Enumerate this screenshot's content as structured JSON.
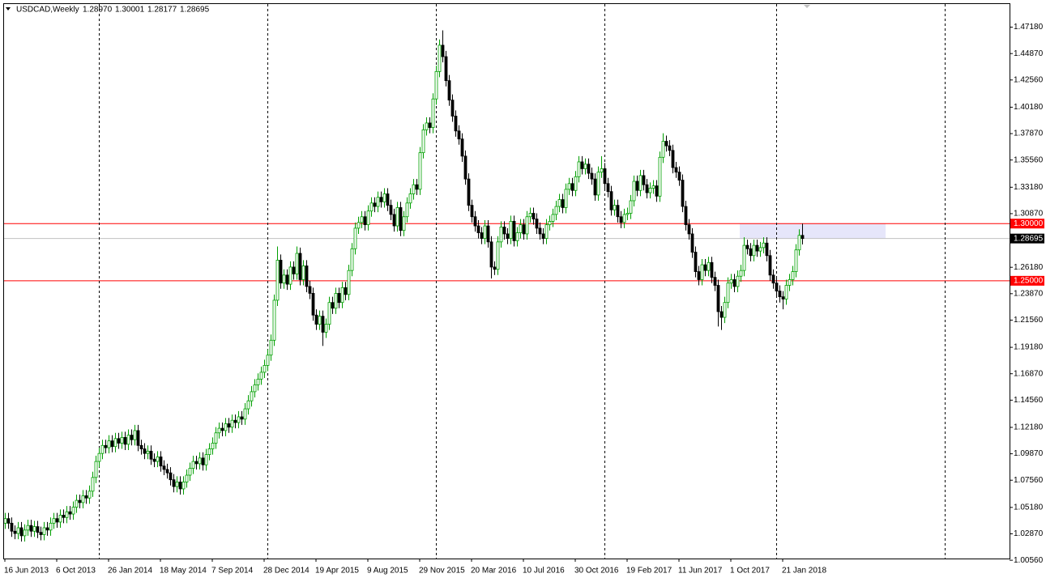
{
  "chart_data": {
    "type": "candlestick",
    "header": {
      "symbol": "USDCAD,Weekly",
      "ohlc": [
        "1.28970",
        "1.30001",
        "1.28177",
        "1.28695"
      ]
    },
    "categories": [
      "16 Jun 2013",
      null,
      null,
      null,
      null,
      null,
      null,
      null,
      null,
      null,
      null,
      null,
      null,
      null,
      null,
      null,
      "6 Oct 2013",
      null,
      null,
      null,
      null,
      null,
      null,
      null,
      null,
      null,
      null,
      null,
      null,
      null,
      null,
      null,
      "26 Jan 2014",
      null,
      null,
      null,
      null,
      null,
      null,
      null,
      null,
      null,
      null,
      null,
      null,
      null,
      null,
      null,
      "18 May 2014",
      null,
      null,
      null,
      null,
      null,
      null,
      null,
      null,
      null,
      null,
      null,
      null,
      null,
      null,
      null,
      "7 Sep 2014",
      null,
      null,
      null,
      null,
      null,
      null,
      null,
      null,
      null,
      null,
      null,
      null,
      null,
      null,
      null,
      "28 Dec 2014",
      null,
      null,
      null,
      null,
      null,
      null,
      null,
      null,
      null,
      null,
      null,
      null,
      null,
      null,
      null,
      "19 Apr 2015",
      null,
      null,
      null,
      null,
      null,
      null,
      null,
      null,
      null,
      null,
      null,
      null,
      null,
      null,
      null,
      "9 Aug 2015",
      null,
      null,
      null,
      null,
      null,
      null,
      null,
      null,
      null,
      null,
      null,
      null,
      null,
      null,
      null,
      "29 Nov 2015",
      null,
      null,
      null,
      null,
      null,
      null,
      null,
      null,
      null,
      null,
      null,
      null,
      null,
      null,
      null,
      "20 Mar 2016",
      null,
      null,
      null,
      null,
      null,
      null,
      null,
      null,
      null,
      null,
      null,
      null,
      null,
      null,
      null,
      "10 Jul 2016",
      null,
      null,
      null,
      null,
      null,
      null,
      null,
      null,
      null,
      null,
      null,
      null,
      null,
      null,
      null,
      "30 Oct 2016",
      null,
      null,
      null,
      null,
      null,
      null,
      null,
      null,
      null,
      null,
      null,
      null,
      null,
      null,
      null,
      "19 Feb 2017",
      null,
      null,
      null,
      null,
      null,
      null,
      null,
      null,
      null,
      null,
      null,
      null,
      null,
      null,
      null,
      "11 Jun 2017",
      null,
      null,
      null,
      null,
      null,
      null,
      null,
      null,
      null,
      null,
      null,
      null,
      null,
      null,
      null,
      "1 Oct 2017",
      null,
      null,
      null,
      null,
      null,
      null,
      null,
      null,
      null,
      null,
      null,
      null,
      null,
      null,
      null,
      "21 Jan 2018",
      null,
      null,
      null,
      null,
      null,
      null
    ],
    "open": [
      1.038,
      1.042,
      1.038,
      1.031,
      1.029,
      1.034,
      1.027,
      1.032,
      1.036,
      1.031,
      1.035,
      1.03,
      1.028,
      1.034,
      1.032,
      1.038,
      1.042,
      1.039,
      1.045,
      1.043,
      1.048,
      1.046,
      1.052,
      1.058,
      1.056,
      1.062,
      1.06,
      1.066,
      1.078,
      1.092,
      1.099,
      1.106,
      1.104,
      1.11,
      1.105,
      1.112,
      1.108,
      1.113,
      1.107,
      1.115,
      1.111,
      1.119,
      1.106,
      1.103,
      1.099,
      1.101,
      1.094,
      1.092,
      1.096,
      1.088,
      1.085,
      1.082,
      1.076,
      1.07,
      1.074,
      1.068,
      1.074,
      1.08,
      1.086,
      1.092,
      1.09,
      1.095,
      1.089,
      1.098,
      1.103,
      1.108,
      1.117,
      1.121,
      1.119,
      1.125,
      1.122,
      1.128,
      1.126,
      1.131,
      1.129,
      1.138,
      1.145,
      1.153,
      1.159,
      1.164,
      1.17,
      1.176,
      1.185,
      1.198,
      1.233,
      1.268,
      1.248,
      1.255,
      1.247,
      1.262,
      1.256,
      1.274,
      1.251,
      1.263,
      1.245,
      1.239,
      1.22,
      1.212,
      1.219,
      1.205,
      1.212,
      1.231,
      1.226,
      1.239,
      1.231,
      1.244,
      1.238,
      1.259,
      1.278,
      1.296,
      1.301,
      1.306,
      1.299,
      1.311,
      1.318,
      1.315,
      1.323,
      1.319,
      1.326,
      1.316,
      1.308,
      1.298,
      1.314,
      1.294,
      1.306,
      1.318,
      1.326,
      1.334,
      1.33,
      1.362,
      1.382,
      1.388,
      1.384,
      1.409,
      1.433,
      1.456,
      1.446,
      1.425,
      1.408,
      1.394,
      1.381,
      1.374,
      1.359,
      1.339,
      1.316,
      1.306,
      1.298,
      1.292,
      1.287,
      1.298,
      1.284,
      1.262,
      1.26,
      1.284,
      1.297,
      1.291,
      1.287,
      1.302,
      1.285,
      1.292,
      1.299,
      1.291,
      1.306,
      1.309,
      1.304,
      1.296,
      1.291,
      1.287,
      1.299,
      1.302,
      1.308,
      1.315,
      1.321,
      1.314,
      1.33,
      1.335,
      1.329,
      1.341,
      1.354,
      1.348,
      1.352,
      1.344,
      1.339,
      1.325,
      1.345,
      1.348,
      1.335,
      1.328,
      1.312,
      1.316,
      1.306,
      1.301,
      1.308,
      1.309,
      1.32,
      1.337,
      1.329,
      1.342,
      1.334,
      1.327,
      1.331,
      1.333,
      1.324,
      1.358,
      1.372,
      1.368,
      1.364,
      1.349,
      1.345,
      1.338,
      1.315,
      1.299,
      1.291,
      1.275,
      1.258,
      1.251,
      1.264,
      1.259,
      1.266,
      1.253,
      1.246,
      1.223,
      1.218,
      1.231,
      1.248,
      1.251,
      1.245,
      1.254,
      1.259,
      1.281,
      1.278,
      1.272,
      1.281,
      1.276,
      1.279,
      1.283,
      1.272,
      1.255,
      1.248,
      1.241,
      1.236,
      1.234,
      1.246,
      1.251,
      1.258,
      1.277,
      1.2897
    ],
    "high": [
      1.047,
      1.047,
      1.043,
      1.036,
      1.039,
      1.039,
      1.037,
      1.041,
      1.041,
      1.04,
      1.04,
      1.035,
      1.039,
      1.039,
      1.043,
      1.047,
      1.047,
      1.05,
      1.05,
      1.053,
      1.053,
      1.057,
      1.063,
      1.063,
      1.067,
      1.067,
      1.071,
      1.083,
      1.097,
      1.104,
      1.111,
      1.111,
      1.115,
      1.115,
      1.117,
      1.117,
      1.118,
      1.118,
      1.12,
      1.12,
      1.124,
      1.124,
      1.111,
      1.108,
      1.106,
      1.106,
      1.099,
      1.101,
      1.101,
      1.093,
      1.09,
      1.087,
      1.081,
      1.079,
      1.079,
      1.079,
      1.085,
      1.091,
      1.097,
      1.097,
      1.1,
      1.1,
      1.103,
      1.108,
      1.113,
      1.122,
      1.126,
      1.126,
      1.13,
      1.13,
      1.133,
      1.133,
      1.136,
      1.136,
      1.143,
      1.15,
      1.158,
      1.164,
      1.169,
      1.175,
      1.181,
      1.19,
      1.203,
      1.238,
      1.28,
      1.273,
      1.26,
      1.26,
      1.267,
      1.267,
      1.28,
      1.279,
      1.268,
      1.268,
      1.25,
      1.244,
      1.225,
      1.224,
      1.224,
      1.217,
      1.236,
      1.236,
      1.244,
      1.244,
      1.249,
      1.249,
      1.264,
      1.283,
      1.301,
      1.306,
      1.311,
      1.311,
      1.316,
      1.323,
      1.323,
      1.328,
      1.328,
      1.331,
      1.331,
      1.321,
      1.313,
      1.319,
      1.319,
      1.311,
      1.323,
      1.331,
      1.339,
      1.339,
      1.367,
      1.387,
      1.393,
      1.393,
      1.414,
      1.438,
      1.461,
      1.469,
      1.451,
      1.43,
      1.413,
      1.399,
      1.386,
      1.379,
      1.364,
      1.344,
      1.321,
      1.311,
      1.303,
      1.297,
      1.303,
      1.303,
      1.289,
      1.267,
      1.289,
      1.302,
      1.302,
      1.296,
      1.307,
      1.307,
      1.297,
      1.304,
      1.304,
      1.311,
      1.314,
      1.314,
      1.309,
      1.301,
      1.296,
      1.304,
      1.307,
      1.313,
      1.32,
      1.326,
      1.326,
      1.335,
      1.34,
      1.34,
      1.346,
      1.359,
      1.359,
      1.357,
      1.357,
      1.349,
      1.344,
      1.35,
      1.359,
      1.353,
      1.34,
      1.333,
      1.321,
      1.321,
      1.311,
      1.313,
      1.314,
      1.325,
      1.342,
      1.342,
      1.347,
      1.347,
      1.339,
      1.336,
      1.338,
      1.338,
      1.363,
      1.379,
      1.377,
      1.373,
      1.369,
      1.354,
      1.35,
      1.343,
      1.32,
      1.304,
      1.296,
      1.28,
      1.263,
      1.269,
      1.269,
      1.271,
      1.271,
      1.258,
      1.251,
      1.228,
      1.236,
      1.253,
      1.256,
      1.256,
      1.259,
      1.264,
      1.288,
      1.286,
      1.283,
      1.286,
      1.286,
      1.284,
      1.288,
      1.288,
      1.277,
      1.26,
      1.253,
      1.246,
      1.241,
      1.251,
      1.256,
      1.263,
      1.282,
      1.295,
      1.30001
    ],
    "low": [
      1.033,
      1.033,
      1.026,
      1.024,
      1.024,
      1.022,
      1.022,
      1.027,
      1.026,
      1.026,
      1.025,
      1.023,
      1.023,
      1.027,
      1.027,
      1.033,
      1.034,
      1.034,
      1.038,
      1.038,
      1.041,
      1.041,
      1.047,
      1.051,
      1.051,
      1.055,
      1.055,
      1.061,
      1.073,
      1.087,
      1.094,
      1.099,
      1.099,
      1.1,
      1.1,
      1.103,
      1.103,
      1.102,
      1.102,
      1.106,
      1.106,
      1.101,
      1.098,
      1.094,
      1.094,
      1.089,
      1.087,
      1.087,
      1.083,
      1.08,
      1.077,
      1.071,
      1.065,
      1.065,
      1.063,
      1.063,
      1.069,
      1.075,
      1.081,
      1.085,
      1.085,
      1.084,
      1.084,
      1.093,
      1.098,
      1.103,
      1.112,
      1.114,
      1.114,
      1.117,
      1.117,
      1.121,
      1.121,
      1.124,
      1.124,
      1.133,
      1.14,
      1.148,
      1.154,
      1.159,
      1.165,
      1.171,
      1.18,
      1.193,
      1.228,
      1.243,
      1.243,
      1.242,
      1.242,
      1.251,
      1.251,
      1.246,
      1.246,
      1.24,
      1.234,
      1.215,
      1.207,
      1.207,
      1.193,
      1.2,
      1.207,
      1.221,
      1.221,
      1.226,
      1.226,
      1.233,
      1.233,
      1.254,
      1.273,
      1.291,
      1.296,
      1.294,
      1.294,
      1.306,
      1.31,
      1.31,
      1.314,
      1.314,
      1.311,
      1.303,
      1.293,
      1.293,
      1.289,
      1.289,
      1.301,
      1.313,
      1.321,
      1.325,
      1.325,
      1.357,
      1.377,
      1.379,
      1.379,
      1.404,
      1.428,
      1.441,
      1.42,
      1.403,
      1.389,
      1.376,
      1.369,
      1.354,
      1.334,
      1.311,
      1.301,
      1.293,
      1.287,
      1.282,
      1.282,
      1.279,
      1.252,
      1.255,
      1.255,
      1.279,
      1.286,
      1.282,
      1.282,
      1.28,
      1.28,
      1.287,
      1.286,
      1.286,
      1.301,
      1.299,
      1.291,
      1.286,
      1.282,
      1.282,
      1.294,
      1.297,
      1.303,
      1.31,
      1.309,
      1.309,
      1.325,
      1.324,
      1.324,
      1.336,
      1.343,
      1.343,
      1.339,
      1.334,
      1.32,
      1.32,
      1.34,
      1.33,
      1.323,
      1.307,
      1.307,
      1.301,
      1.296,
      1.296,
      1.303,
      1.304,
      1.315,
      1.324,
      1.324,
      1.329,
      1.322,
      1.322,
      1.326,
      1.319,
      1.319,
      1.353,
      1.363,
      1.359,
      1.344,
      1.34,
      1.333,
      1.31,
      1.294,
      1.286,
      1.27,
      1.253,
      1.246,
      1.246,
      1.254,
      1.254,
      1.248,
      1.241,
      1.21,
      1.207,
      1.213,
      1.226,
      1.243,
      1.24,
      1.24,
      1.249,
      1.254,
      1.273,
      1.267,
      1.267,
      1.271,
      1.271,
      1.274,
      1.267,
      1.25,
      1.243,
      1.236,
      1.231,
      1.225,
      1.229,
      1.241,
      1.246,
      1.253,
      1.272,
      1.28177
    ],
    "close": [
      1.042,
      1.038,
      1.031,
      1.029,
      1.034,
      1.027,
      1.032,
      1.036,
      1.031,
      1.035,
      1.03,
      1.028,
      1.034,
      1.032,
      1.038,
      1.042,
      1.039,
      1.045,
      1.043,
      1.048,
      1.046,
      1.052,
      1.058,
      1.056,
      1.062,
      1.06,
      1.066,
      1.078,
      1.092,
      1.099,
      1.106,
      1.104,
      1.11,
      1.105,
      1.112,
      1.108,
      1.113,
      1.107,
      1.115,
      1.111,
      1.119,
      1.106,
      1.103,
      1.099,
      1.101,
      1.094,
      1.092,
      1.096,
      1.088,
      1.085,
      1.082,
      1.076,
      1.07,
      1.074,
      1.068,
      1.074,
      1.08,
      1.086,
      1.092,
      1.09,
      1.095,
      1.089,
      1.098,
      1.103,
      1.108,
      1.117,
      1.121,
      1.119,
      1.125,
      1.122,
      1.128,
      1.126,
      1.131,
      1.129,
      1.138,
      1.145,
      1.153,
      1.159,
      1.164,
      1.17,
      1.176,
      1.185,
      1.198,
      1.233,
      1.268,
      1.248,
      1.255,
      1.247,
      1.262,
      1.256,
      1.274,
      1.251,
      1.263,
      1.245,
      1.239,
      1.22,
      1.212,
      1.219,
      1.205,
      1.212,
      1.231,
      1.226,
      1.239,
      1.231,
      1.244,
      1.238,
      1.259,
      1.278,
      1.296,
      1.301,
      1.306,
      1.299,
      1.311,
      1.318,
      1.315,
      1.323,
      1.319,
      1.326,
      1.316,
      1.308,
      1.298,
      1.314,
      1.294,
      1.306,
      1.318,
      1.326,
      1.334,
      1.33,
      1.362,
      1.382,
      1.388,
      1.384,
      1.409,
      1.433,
      1.456,
      1.446,
      1.425,
      1.408,
      1.394,
      1.381,
      1.374,
      1.359,
      1.339,
      1.316,
      1.306,
      1.298,
      1.292,
      1.287,
      1.298,
      1.284,
      1.262,
      1.26,
      1.284,
      1.297,
      1.291,
      1.287,
      1.302,
      1.285,
      1.292,
      1.299,
      1.291,
      1.306,
      1.309,
      1.304,
      1.296,
      1.291,
      1.287,
      1.299,
      1.302,
      1.308,
      1.315,
      1.321,
      1.314,
      1.33,
      1.335,
      1.329,
      1.341,
      1.354,
      1.348,
      1.352,
      1.344,
      1.339,
      1.325,
      1.345,
      1.348,
      1.335,
      1.328,
      1.312,
      1.316,
      1.306,
      1.301,
      1.308,
      1.309,
      1.32,
      1.337,
      1.329,
      1.342,
      1.334,
      1.327,
      1.331,
      1.333,
      1.324,
      1.358,
      1.372,
      1.368,
      1.364,
      1.349,
      1.345,
      1.338,
      1.315,
      1.299,
      1.291,
      1.275,
      1.258,
      1.251,
      1.264,
      1.259,
      1.266,
      1.253,
      1.246,
      1.223,
      1.218,
      1.231,
      1.248,
      1.251,
      1.245,
      1.254,
      1.259,
      1.281,
      1.278,
      1.272,
      1.281,
      1.276,
      1.279,
      1.283,
      1.272,
      1.255,
      1.248,
      1.241,
      1.236,
      1.234,
      1.246,
      1.251,
      1.258,
      1.277,
      1.2897,
      1.28695
    ],
    "up_color": "#00a000",
    "down_color": "#000000",
    "ylim": [
      1.0071,
      1.492
    ],
    "yticks": [
      {
        "value": 1.4718,
        "label": "1.47180"
      },
      {
        "value": 1.4487,
        "label": "1.44870"
      },
      {
        "value": 1.4256,
        "label": "1.42560"
      },
      {
        "value": 1.4018,
        "label": "1.40180"
      },
      {
        "value": 1.3787,
        "label": "1.37870"
      },
      {
        "value": 1.3556,
        "label": "1.35560"
      },
      {
        "value": 1.3318,
        "label": "1.33180"
      },
      {
        "value": 1.3087,
        "label": "1.30870"
      },
      {
        "value": 1.2618,
        "label": "1.26180"
      },
      {
        "value": 1.2387,
        "label": "1.23870"
      },
      {
        "value": 1.2156,
        "label": "1.21560"
      },
      {
        "value": 1.1918,
        "label": "1.19180"
      },
      {
        "value": 1.1687,
        "label": "1.16870"
      },
      {
        "value": 1.1456,
        "label": "1.14560"
      },
      {
        "value": 1.1218,
        "label": "1.12180"
      },
      {
        "value": 1.0987,
        "label": "1.09870"
      },
      {
        "value": 1.0756,
        "label": "1.07560"
      },
      {
        "value": 1.0518,
        "label": "1.05180"
      },
      {
        "value": 1.0287,
        "label": "1.02870"
      },
      {
        "value": 1.0056,
        "label": "1.00560"
      }
    ],
    "hlines": [
      {
        "value": 1.3,
        "label": "1.30000",
        "color": "#ff0000"
      },
      {
        "value": 1.25,
        "label": "1.25000",
        "color": "#ff0000"
      }
    ],
    "bid": {
      "value": 1.28695,
      "label": "1.28695",
      "color": "#c0c0c0"
    },
    "zone": {
      "top": 1.3,
      "bottom": 1.2869,
      "color": "#e6e6fa"
    }
  }
}
